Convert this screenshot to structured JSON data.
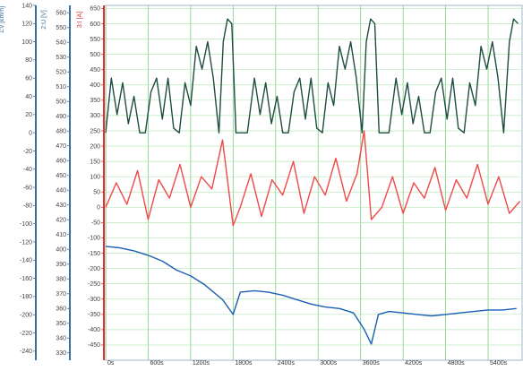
{
  "chart_data": {
    "type": "line",
    "title": "",
    "x": {
      "unit": "s",
      "range": [
        0,
        5880
      ],
      "ticks": [
        0,
        600,
        1200,
        1800,
        2400,
        3000,
        3600,
        4200,
        4800,
        5400
      ],
      "tick_labels": [
        "0s",
        "600s",
        "1200s",
        "1800s",
        "2400s",
        "3000s",
        "3600s",
        "4200s",
        "4800s",
        "5400s"
      ]
    },
    "grid": true,
    "axes": [
      {
        "id": "speed",
        "label": "1:v [km/h]",
        "color": "#3b6f9e",
        "range": [
          -250,
          140
        ],
        "ticks": [
          140,
          120,
          100,
          80,
          60,
          40,
          20,
          0,
          -20,
          -40,
          -60,
          -80,
          -100,
          -120,
          -140,
          -160,
          -180,
          -200,
          -220,
          -240
        ],
        "tick_labels": [
          "140",
          "120",
          "100",
          "80",
          "60",
          "40",
          "20",
          "0",
          "-20",
          "-40",
          "-60",
          "-80",
          "-100",
          "-120",
          "-140",
          "-160",
          "-180",
          "-200",
          "-220",
          "-240"
        ]
      },
      {
        "id": "voltage",
        "label": "2:U [V]",
        "color": "#3b6f9e",
        "range": [
          325,
          565
        ],
        "ticks": [
          560,
          550,
          540,
          530,
          520,
          510,
          500,
          490,
          480,
          470,
          460,
          450,
          440,
          430,
          420,
          410,
          400,
          390,
          380,
          370,
          360,
          350,
          340,
          330
        ],
        "tick_labels": [
          "560",
          "550",
          "540",
          "530",
          "520",
          "510",
          "500",
          "490",
          "480",
          "470",
          "460",
          "450",
          "440",
          "430",
          "420",
          "410",
          "400",
          "390",
          "380",
          "370",
          "360",
          "350",
          "340",
          "330"
        ]
      },
      {
        "id": "current",
        "label": "3:I [A]",
        "color": "#e03030",
        "range": [
          -500,
          660
        ],
        "ticks": [
          650,
          600,
          550,
          500,
          450,
          400,
          350,
          300,
          250,
          200,
          150,
          100,
          50,
          0,
          -50,
          -100,
          -150,
          -200,
          -250,
          -300,
          -350,
          -400,
          -450
        ],
        "tick_labels": [
          "650",
          "600",
          "550",
          "500",
          "450",
          "400",
          "350",
          "300",
          "250",
          "200",
          "150",
          "100",
          "50",
          "0",
          "-50",
          "-100",
          "-150",
          "-200",
          "-250",
          "-300",
          "-350",
          "-400",
          "-450"
        ]
      }
    ],
    "series": [
      {
        "axis": "speed",
        "color": "#1f4d44",
        "points": [
          [
            0,
            0
          ],
          [
            80,
            60
          ],
          [
            160,
            20
          ],
          [
            240,
            55
          ],
          [
            320,
            10
          ],
          [
            400,
            40
          ],
          [
            480,
            0
          ],
          [
            560,
            0
          ],
          [
            640,
            45
          ],
          [
            720,
            60
          ],
          [
            800,
            15
          ],
          [
            880,
            60
          ],
          [
            960,
            5
          ],
          [
            1040,
            0
          ],
          [
            1120,
            55
          ],
          [
            1200,
            30
          ],
          [
            1280,
            95
          ],
          [
            1360,
            70
          ],
          [
            1440,
            100
          ],
          [
            1520,
            60
          ],
          [
            1600,
            0
          ],
          [
            1660,
            100
          ],
          [
            1720,
            125
          ],
          [
            1780,
            120
          ],
          [
            1840,
            0
          ],
          [
            2000,
            0
          ],
          [
            2100,
            60
          ],
          [
            2180,
            20
          ],
          [
            2260,
            55
          ],
          [
            2340,
            10
          ],
          [
            2420,
            40
          ],
          [
            2500,
            0
          ],
          [
            2580,
            0
          ],
          [
            2660,
            45
          ],
          [
            2740,
            60
          ],
          [
            2820,
            15
          ],
          [
            2900,
            60
          ],
          [
            2980,
            5
          ],
          [
            3060,
            0
          ],
          [
            3140,
            55
          ],
          [
            3220,
            30
          ],
          [
            3300,
            95
          ],
          [
            3380,
            70
          ],
          [
            3460,
            100
          ],
          [
            3540,
            60
          ],
          [
            3620,
            0
          ],
          [
            3680,
            100
          ],
          [
            3740,
            125
          ],
          [
            3800,
            120
          ],
          [
            3860,
            0
          ],
          [
            4000,
            0
          ],
          [
            4100,
            60
          ],
          [
            4180,
            20
          ],
          [
            4260,
            55
          ],
          [
            4340,
            10
          ],
          [
            4420,
            40
          ],
          [
            4500,
            0
          ],
          [
            4580,
            0
          ],
          [
            4660,
            45
          ],
          [
            4740,
            60
          ],
          [
            4820,
            15
          ],
          [
            4900,
            60
          ],
          [
            4980,
            5
          ],
          [
            5060,
            0
          ],
          [
            5140,
            55
          ],
          [
            5220,
            30
          ],
          [
            5300,
            95
          ],
          [
            5380,
            70
          ],
          [
            5460,
            100
          ],
          [
            5540,
            60
          ],
          [
            5620,
            0
          ],
          [
            5700,
            100
          ],
          [
            5760,
            125
          ],
          [
            5820,
            120
          ]
        ]
      },
      {
        "axis": "current",
        "color": "#f04848",
        "points": [
          [
            0,
            0
          ],
          [
            150,
            80
          ],
          [
            300,
            10
          ],
          [
            450,
            120
          ],
          [
            600,
            -40
          ],
          [
            750,
            90
          ],
          [
            900,
            30
          ],
          [
            1050,
            140
          ],
          [
            1200,
            0
          ],
          [
            1350,
            100
          ],
          [
            1500,
            60
          ],
          [
            1650,
            220
          ],
          [
            1800,
            -60
          ],
          [
            1900,
            0
          ],
          [
            2050,
            110
          ],
          [
            2200,
            -30
          ],
          [
            2350,
            90
          ],
          [
            2500,
            40
          ],
          [
            2650,
            150
          ],
          [
            2800,
            -20
          ],
          [
            2950,
            100
          ],
          [
            3100,
            40
          ],
          [
            3250,
            160
          ],
          [
            3400,
            20
          ],
          [
            3550,
            110
          ],
          [
            3650,
            250
          ],
          [
            3750,
            -40
          ],
          [
            3900,
            0
          ],
          [
            4050,
            100
          ],
          [
            4200,
            -20
          ],
          [
            4350,
            80
          ],
          [
            4500,
            30
          ],
          [
            4650,
            130
          ],
          [
            4800,
            -10
          ],
          [
            4950,
            90
          ],
          [
            5100,
            30
          ],
          [
            5250,
            140
          ],
          [
            5400,
            10
          ],
          [
            5550,
            100
          ],
          [
            5700,
            -20
          ],
          [
            5850,
            20
          ]
        ]
      },
      {
        "axis": "voltage",
        "color": "#1a5fb4",
        "points": [
          [
            0,
            402
          ],
          [
            200,
            401
          ],
          [
            400,
            399
          ],
          [
            600,
            396
          ],
          [
            800,
            392
          ],
          [
            1000,
            386
          ],
          [
            1200,
            382
          ],
          [
            1400,
            376
          ],
          [
            1500,
            372
          ],
          [
            1650,
            366
          ],
          [
            1800,
            356
          ],
          [
            1900,
            371
          ],
          [
            2100,
            372
          ],
          [
            2300,
            371
          ],
          [
            2500,
            369
          ],
          [
            2700,
            366
          ],
          [
            2900,
            363
          ],
          [
            3100,
            361
          ],
          [
            3300,
            360
          ],
          [
            3500,
            357
          ],
          [
            3650,
            346
          ],
          [
            3750,
            336
          ],
          [
            3850,
            356
          ],
          [
            4000,
            358
          ],
          [
            4200,
            357
          ],
          [
            4400,
            356
          ],
          [
            4600,
            355
          ],
          [
            4800,
            356
          ],
          [
            5000,
            357
          ],
          [
            5200,
            358
          ],
          [
            5400,
            359
          ],
          [
            5600,
            359
          ],
          [
            5800,
            360
          ]
        ]
      }
    ]
  }
}
